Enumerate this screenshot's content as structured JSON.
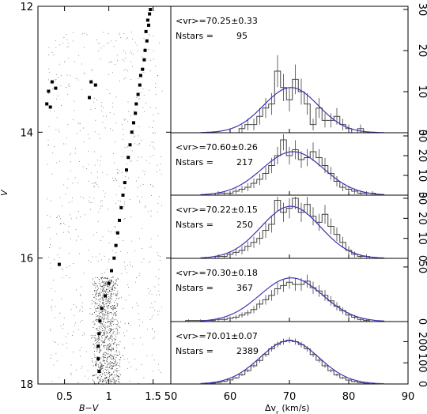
{
  "chart_data": [
    {
      "type": "scatter",
      "xlabel": "B−V",
      "ylabel": "V",
      "xlim": [
        0.2,
        1.7
      ],
      "ylim": [
        18,
        12
      ],
      "y_inverted": true,
      "x_ticks": [
        "0.5",
        "1",
        "1.5"
      ],
      "y_ticks": [
        "12",
        "14",
        "16",
        "18"
      ],
      "series": [
        {
          "values_description": "member stars (large squares)",
          "points": [
            [
              1.47,
              12.05
            ],
            [
              1.46,
              12.12
            ],
            [
              1.44,
              12.22
            ],
            [
              1.45,
              12.3
            ],
            [
              1.42,
              12.4
            ],
            [
              1.43,
              12.55
            ],
            [
              1.41,
              12.7
            ],
            [
              1.4,
              12.85
            ],
            [
              1.38,
              13.0
            ],
            [
              1.36,
              13.1
            ],
            [
              1.35,
              13.25
            ],
            [
              1.33,
              13.4
            ],
            [
              1.31,
              13.55
            ],
            [
              1.3,
              13.7
            ],
            [
              1.28,
              13.85
            ],
            [
              1.26,
              14.0
            ],
            [
              1.24,
              14.2
            ],
            [
              1.22,
              14.4
            ],
            [
              1.2,
              14.6
            ],
            [
              1.18,
              14.8
            ],
            [
              1.16,
              15.0
            ],
            [
              1.14,
              15.2
            ],
            [
              1.12,
              15.4
            ],
            [
              1.1,
              15.6
            ],
            [
              1.08,
              15.8
            ],
            [
              1.06,
              16.0
            ],
            [
              1.03,
              16.2
            ],
            [
              1.0,
              16.4
            ],
            [
              0.96,
              16.6
            ],
            [
              0.92,
              16.8
            ],
            [
              0.9,
              17.0
            ],
            [
              0.89,
              17.2
            ],
            [
              0.88,
              17.4
            ],
            [
              0.88,
              17.6
            ],
            [
              0.89,
              17.8
            ],
            [
              0.32,
              13.35
            ],
            [
              0.36,
              13.2
            ],
            [
              0.4,
              13.3
            ],
            [
              0.3,
              13.55
            ],
            [
              0.34,
              13.6
            ],
            [
              0.8,
              13.2
            ],
            [
              0.85,
              13.25
            ],
            [
              0.78,
              13.45
            ],
            [
              0.44,
              16.1
            ]
          ]
        }
      ]
    },
    {
      "type": "bar",
      "panel": 1,
      "annotation": "<vr>=70.25±0.33",
      "nstars_label": "Nstars =",
      "nstars": "95",
      "xlim": [
        50,
        90
      ],
      "ylim": [
        0,
        30
      ],
      "y_ticks": [
        "0",
        "10",
        "20",
        "30"
      ],
      "mean": 70.25,
      "sigma": 4.6,
      "peak": 11,
      "categories": [
        60,
        61,
        62,
        63,
        64,
        65,
        66,
        67,
        68,
        69,
        70,
        71,
        72,
        73,
        74,
        75,
        76,
        77,
        78,
        79,
        80,
        81,
        82
      ],
      "values": [
        0,
        0,
        1,
        2,
        2,
        4,
        6,
        7,
        15,
        11,
        8,
        13,
        10,
        7,
        2,
        6,
        3,
        3,
        4,
        2,
        1,
        0,
        1
      ]
    },
    {
      "type": "bar",
      "panel": 2,
      "annotation": "<vr>=70.60±0.26",
      "nstars_label": "Nstars =",
      "nstars": "217",
      "xlim": [
        50,
        90
      ],
      "ylim": [
        0,
        30
      ],
      "y_ticks": [
        "0",
        "10",
        "20",
        "30"
      ],
      "mean": 70.6,
      "sigma": 5.2,
      "peak": 22,
      "categories": [
        58,
        59,
        60,
        61,
        62,
        63,
        64,
        65,
        66,
        67,
        68,
        69,
        70,
        71,
        72,
        73,
        74,
        75,
        76,
        77,
        78,
        79,
        80,
        81,
        82,
        83,
        84
      ],
      "values": [
        1,
        1,
        1,
        2,
        3,
        4,
        6,
        8,
        11,
        15,
        20,
        28,
        20,
        23,
        18,
        19,
        22,
        19,
        15,
        11,
        7,
        4,
        3,
        2,
        1,
        1,
        1
      ]
    },
    {
      "type": "bar",
      "panel": 3,
      "annotation": "<vr>=70.22±0.15",
      "nstars_label": "Nstars =",
      "nstars": "250",
      "xlim": [
        50,
        90
      ],
      "ylim": [
        0,
        30
      ],
      "y_ticks": [
        "0",
        "10",
        "20",
        "30"
      ],
      "mean": 70.22,
      "sigma": 5.0,
      "peak": 26,
      "categories": [
        58,
        59,
        60,
        61,
        62,
        63,
        64,
        65,
        66,
        67,
        68,
        69,
        70,
        71,
        72,
        73,
        74,
        75,
        76,
        77,
        78,
        79,
        80,
        81,
        82,
        83
      ],
      "values": [
        1,
        1,
        2,
        3,
        4,
        6,
        8,
        10,
        14,
        17,
        29,
        23,
        25,
        30,
        23,
        27,
        21,
        18,
        22,
        16,
        12,
        8,
        4,
        2,
        1,
        1
      ]
    },
    {
      "type": "bar",
      "panel": 4,
      "annotation": "<vr>=70.30±0.18",
      "nstars_label": "Nstars =",
      "nstars": "367",
      "xlim": [
        50,
        90
      ],
      "ylim": [
        0,
        55
      ],
      "y_ticks": [
        "0",
        "50"
      ],
      "mean": 70.3,
      "sigma": 5.3,
      "peak": 40,
      "categories": [
        53,
        55,
        57,
        58,
        59,
        60,
        61,
        62,
        63,
        64,
        65,
        66,
        67,
        68,
        69,
        70,
        71,
        72,
        73,
        74,
        75,
        76,
        77,
        78,
        79,
        80,
        81,
        82,
        83
      ],
      "values": [
        1,
        1,
        1,
        2,
        2,
        3,
        4,
        6,
        8,
        11,
        16,
        20,
        24,
        30,
        33,
        36,
        34,
        34,
        37,
        31,
        28,
        24,
        19,
        14,
        10,
        6,
        4,
        2,
        1
      ]
    },
    {
      "type": "bar",
      "panel": 5,
      "annotation": "<vr>=70.01±0.07",
      "nstars_label": "Nstars =",
      "nstars": "2389",
      "xlim": [
        50,
        90
      ],
      "ylim": [
        0,
        280
      ],
      "y_ticks": [
        "0",
        "100",
        "200"
      ],
      "mean": 70.01,
      "sigma": 5.0,
      "peak": 205,
      "xlabel": "Δv_r (km/s)",
      "x_ticks": [
        "50",
        "60",
        "70",
        "80",
        "90"
      ],
      "categories": [
        57,
        58,
        59,
        60,
        61,
        62,
        63,
        64,
        65,
        66,
        67,
        68,
        69,
        70,
        71,
        72,
        73,
        74,
        75,
        76,
        77,
        78,
        79,
        80,
        81,
        82,
        83
      ],
      "values": [
        4,
        7,
        12,
        19,
        29,
        44,
        63,
        86,
        111,
        139,
        166,
        187,
        200,
        207,
        200,
        186,
        166,
        139,
        112,
        86,
        63,
        43,
        29,
        18,
        11,
        6,
        3
      ]
    }
  ],
  "labels": {
    "xlabel_left": "B−V",
    "ylabel_left": "V",
    "xlabel_right_main": "Δv",
    "xlabel_right_sub": "r",
    "xlabel_right_unit": "(km/s)"
  },
  "colors": {
    "fit": "#3a34b0",
    "hist": "#444444",
    "points": "#000000"
  }
}
